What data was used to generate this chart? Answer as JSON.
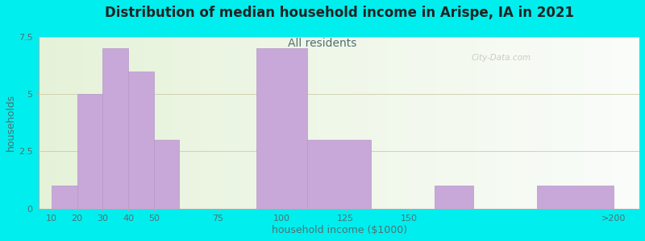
{
  "title": "Distribution of median household income in Arispe, IA in 2021",
  "subtitle": "All residents",
  "xlabel": "household income ($1000)",
  "ylabel": "households",
  "background_color": "#00EEEE",
  "bar_color": "#c8a8d8",
  "bar_edge_color": "#b898c8",
  "title_fontsize": 12,
  "subtitle_fontsize": 10,
  "subtitle_color": "#507070",
  "ylabel_color": "#507070",
  "xlabel_color": "#507070",
  "tick_color": "#507070",
  "ylim": [
    0,
    7.5
  ],
  "yticks": [
    0,
    2.5,
    5,
    7.5
  ],
  "bar_lefts": [
    10,
    20,
    30,
    40,
    50,
    90,
    110,
    160,
    200
  ],
  "bar_rights": [
    20,
    30,
    40,
    50,
    60,
    110,
    135,
    175,
    230
  ],
  "bar_heights": [
    1,
    5,
    7,
    6,
    3,
    7,
    3,
    1,
    1
  ],
  "xtick_positions": [
    10,
    20,
    30,
    40,
    50,
    75,
    100,
    125,
    150,
    230
  ],
  "xtick_labels": [
    "10",
    "20",
    "30",
    "40",
    "50",
    "75",
    "100",
    "125",
    "150",
    ">200"
  ],
  "watermark": "City-Data.com"
}
